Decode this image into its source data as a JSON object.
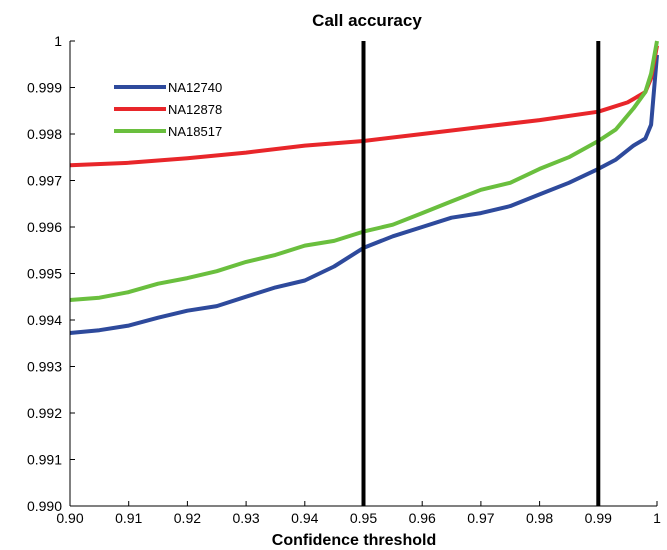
{
  "chart_data": {
    "type": "line",
    "title": "Call accuracy",
    "xlabel": "Confidence threshold",
    "ylabel": "",
    "xlim": [
      0.9,
      1.0
    ],
    "ylim": [
      0.99,
      1.0
    ],
    "x_ticks": [
      "0.90",
      "0.91",
      "0.92",
      "0.93",
      "0.94",
      "0.95",
      "0.96",
      "0.97",
      "0.98",
      "0.99",
      "1"
    ],
    "y_ticks": [
      "0.990",
      "0.991",
      "0.992",
      "0.993",
      "0.994",
      "0.995",
      "0.996",
      "0.997",
      "0.998",
      "0.999",
      "1"
    ],
    "legend_position": "top-left",
    "grid": false,
    "vertical_lines": [
      0.95,
      0.99
    ],
    "series": [
      {
        "name": "NA12740",
        "color": "#2e4a9c",
        "points": [
          [
            0.9,
            0.99372
          ],
          [
            0.905,
            0.99378
          ],
          [
            0.91,
            0.99388
          ],
          [
            0.915,
            0.99405
          ],
          [
            0.92,
            0.9942
          ],
          [
            0.925,
            0.9943
          ],
          [
            0.93,
            0.9945
          ],
          [
            0.935,
            0.9947
          ],
          [
            0.94,
            0.99485
          ],
          [
            0.945,
            0.99515
          ],
          [
            0.95,
            0.99555
          ],
          [
            0.955,
            0.9958
          ],
          [
            0.96,
            0.996
          ],
          [
            0.965,
            0.9962
          ],
          [
            0.97,
            0.9963
          ],
          [
            0.975,
            0.99645
          ],
          [
            0.98,
            0.9967
          ],
          [
            0.985,
            0.99695
          ],
          [
            0.99,
            0.99725
          ],
          [
            0.993,
            0.99745
          ],
          [
            0.996,
            0.99775
          ],
          [
            0.998,
            0.9979
          ],
          [
            0.999,
            0.9982
          ],
          [
            1.0,
            0.9997
          ]
        ]
      },
      {
        "name": "NA12878",
        "color": "#e8262a",
        "points": [
          [
            0.9,
            0.99733
          ],
          [
            0.91,
            0.99738
          ],
          [
            0.92,
            0.99748
          ],
          [
            0.93,
            0.9976
          ],
          [
            0.94,
            0.99775
          ],
          [
            0.95,
            0.99785
          ],
          [
            0.96,
            0.998
          ],
          [
            0.97,
            0.99815
          ],
          [
            0.98,
            0.9983
          ],
          [
            0.99,
            0.99848
          ],
          [
            0.995,
            0.99868
          ],
          [
            0.998,
            0.9989
          ],
          [
            0.999,
            0.9992
          ],
          [
            1.0,
            0.9999
          ]
        ]
      },
      {
        "name": "NA18517",
        "color": "#6abf3e",
        "points": [
          [
            0.9,
            0.99443
          ],
          [
            0.905,
            0.99448
          ],
          [
            0.91,
            0.9946
          ],
          [
            0.915,
            0.99478
          ],
          [
            0.92,
            0.9949
          ],
          [
            0.925,
            0.99505
          ],
          [
            0.93,
            0.99525
          ],
          [
            0.935,
            0.9954
          ],
          [
            0.94,
            0.9956
          ],
          [
            0.945,
            0.9957
          ],
          [
            0.95,
            0.9959
          ],
          [
            0.955,
            0.99605
          ],
          [
            0.96,
            0.9963
          ],
          [
            0.965,
            0.99655
          ],
          [
            0.97,
            0.9968
          ],
          [
            0.975,
            0.99695
          ],
          [
            0.98,
            0.99725
          ],
          [
            0.985,
            0.9975
          ],
          [
            0.99,
            0.99785
          ],
          [
            0.993,
            0.9981
          ],
          [
            0.996,
            0.99855
          ],
          [
            0.998,
            0.9989
          ],
          [
            0.999,
            0.9993
          ],
          [
            1.0,
            1.0
          ]
        ]
      }
    ]
  }
}
